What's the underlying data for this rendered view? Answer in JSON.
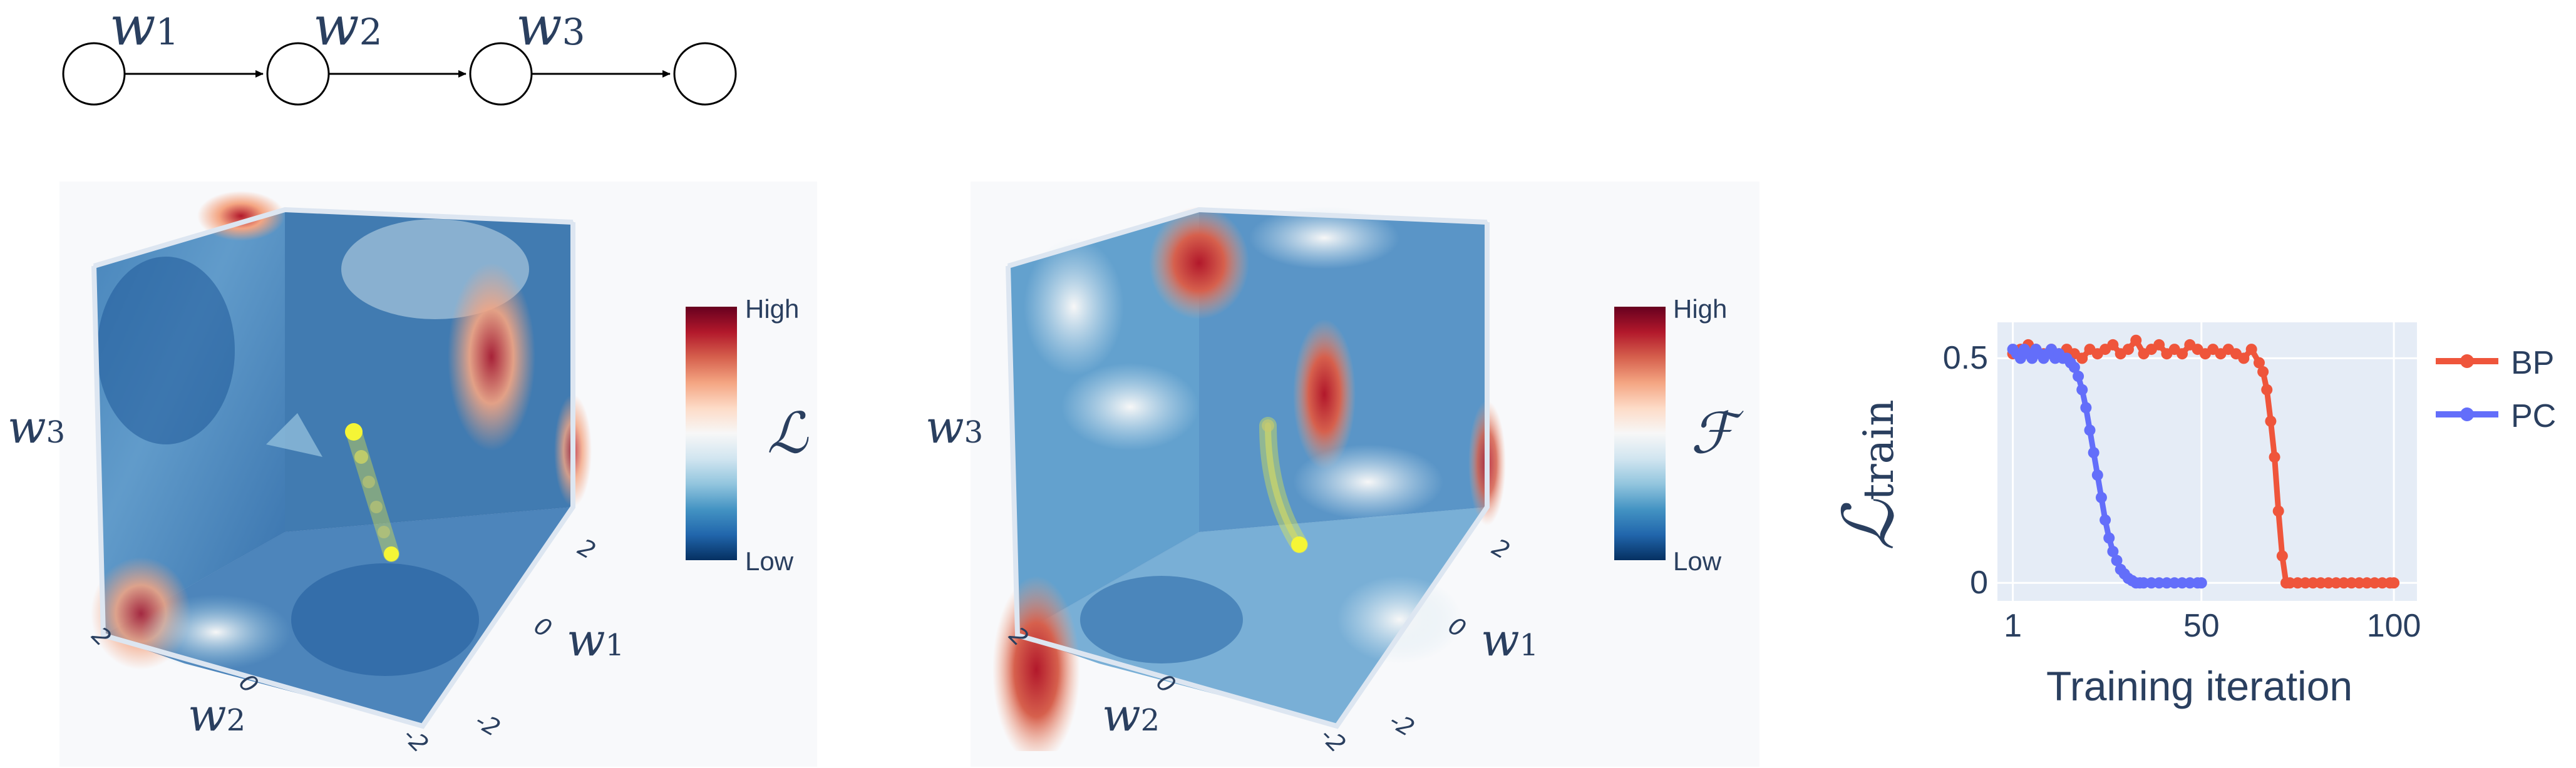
{
  "network": {
    "weights": [
      "w",
      "w",
      "w"
    ],
    "subscripts": [
      "1",
      "2",
      "3"
    ]
  },
  "panels": [
    {
      "name": "loss-landscape",
      "axis_w3": "w",
      "axis_w3_sub": "3",
      "axis_w2": "w",
      "axis_w2_sub": "2",
      "axis_w1": "w",
      "axis_w1_sub": "1",
      "w2_ticks": [
        "2",
        "0",
        "-2"
      ],
      "w1_ticks": [
        "2",
        "0",
        "-2"
      ],
      "colorbar_symbol": "ℒ",
      "colorbar_high": "High",
      "colorbar_low": "Low"
    },
    {
      "name": "energy-landscape",
      "axis_w3": "w",
      "axis_w3_sub": "3",
      "axis_w2": "w",
      "axis_w2_sub": "2",
      "axis_w1": "w",
      "axis_w1_sub": "1",
      "w2_ticks": [
        "2",
        "0",
        "-2"
      ],
      "w1_ticks": [
        "2",
        "0",
        "-2"
      ],
      "colorbar_symbol": "ℱ",
      "colorbar_high": "High",
      "colorbar_low": "Low"
    }
  ],
  "colors": {
    "bp": "#ef553b",
    "pc": "#636efa",
    "plot_bg": "#e5ecf6",
    "grid": "#ffffff",
    "text": "#2a3f5f",
    "colorscale": [
      "#67001f",
      "#b2182b",
      "#d6604d",
      "#f4a582",
      "#fddbc7",
      "#f7f7f7",
      "#d1e5f0",
      "#92c5de",
      "#4393c3",
      "#2166ac",
      "#053061"
    ],
    "trajectory": "#f5f536"
  },
  "chart_data": {
    "type": "line",
    "ylabel": "ℒ",
    "ylabel_sub": "train",
    "xlabel": "Training iteration",
    "x_ticks": [
      "1",
      "50",
      "100"
    ],
    "y_ticks": [
      "0.5",
      "0"
    ],
    "xlim": [
      -3,
      106
    ],
    "ylim": [
      -0.04,
      0.58
    ],
    "legend_position": "top-right",
    "series": [
      {
        "name": "BP",
        "color": "#ef553b",
        "x": [
          1,
          3,
          5,
          7,
          9,
          11,
          13,
          15,
          17,
          19,
          21,
          23,
          25,
          27,
          29,
          31,
          33,
          35,
          37,
          39,
          41,
          43,
          45,
          47,
          49,
          51,
          53,
          55,
          57,
          59,
          61,
          63,
          65,
          66,
          67,
          68,
          69,
          70,
          71,
          72,
          73,
          75,
          77,
          79,
          81,
          83,
          85,
          87,
          89,
          91,
          93,
          95,
          97,
          99,
          100
        ],
        "y": [
          0.51,
          0.52,
          0.53,
          0.52,
          0.51,
          0.52,
          0.51,
          0.52,
          0.51,
          0.5,
          0.52,
          0.51,
          0.52,
          0.53,
          0.51,
          0.52,
          0.54,
          0.51,
          0.52,
          0.53,
          0.51,
          0.52,
          0.51,
          0.53,
          0.52,
          0.51,
          0.52,
          0.51,
          0.52,
          0.51,
          0.5,
          0.52,
          0.49,
          0.47,
          0.43,
          0.36,
          0.28,
          0.16,
          0.06,
          0.0,
          0.0,
          0.0,
          0.0,
          0.0,
          0.0,
          0.0,
          0.0,
          0.0,
          0.0,
          0.0,
          0.0,
          0.0,
          0.0,
          0.0,
          0.0
        ]
      },
      {
        "name": "PC",
        "color": "#636efa",
        "x": [
          1,
          2,
          3,
          4,
          5,
          6,
          7,
          8,
          9,
          10,
          11,
          12,
          13,
          14,
          15,
          16,
          17,
          18,
          19,
          20,
          21,
          22,
          23,
          24,
          25,
          26,
          27,
          28,
          29,
          30,
          31,
          32,
          33,
          34,
          35,
          37,
          39,
          41,
          43,
          45,
          47,
          49,
          50
        ],
        "y": [
          0.52,
          0.51,
          0.5,
          0.52,
          0.51,
          0.5,
          0.52,
          0.51,
          0.5,
          0.51,
          0.52,
          0.5,
          0.51,
          0.5,
          0.5,
          0.49,
          0.48,
          0.46,
          0.43,
          0.39,
          0.34,
          0.29,
          0.24,
          0.19,
          0.14,
          0.1,
          0.07,
          0.05,
          0.03,
          0.02,
          0.01,
          0.005,
          0.0,
          0.0,
          0.0,
          0.0,
          0.0,
          0.0,
          0.0,
          0.0,
          0.0,
          0.0,
          0.0
        ]
      }
    ]
  }
}
